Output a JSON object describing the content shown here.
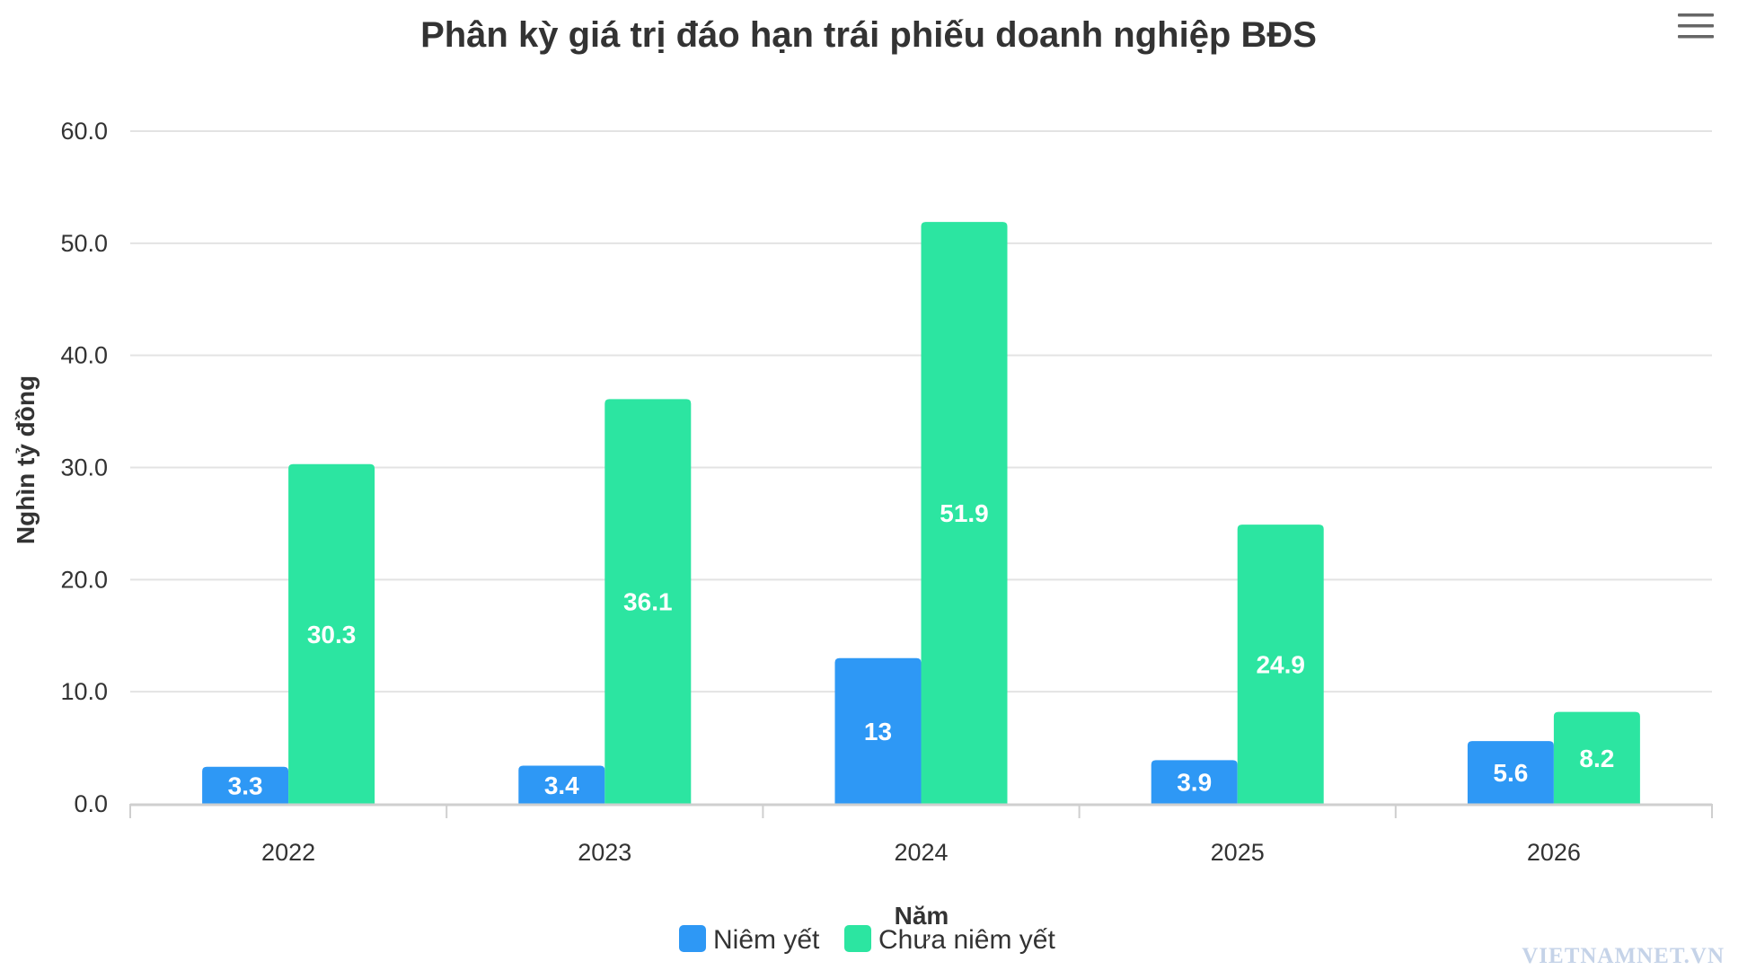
{
  "chart_data": {
    "type": "bar",
    "title": "Phân kỳ giá trị đáo hạn trái phiếu doanh nghiệp BĐS",
    "xlabel": "Năm",
    "ylabel": "Nghìn tỷ đồng",
    "categories": [
      "2022",
      "2023",
      "2024",
      "2025",
      "2026"
    ],
    "series": [
      {
        "name": "Niêm yết",
        "color": "#2e98f5",
        "values": [
          3.3,
          3.4,
          13,
          3.9,
          5.6
        ]
      },
      {
        "name": "Chưa niêm yết",
        "color": "#2ce5a1",
        "values": [
          30.3,
          36.1,
          51.9,
          24.9,
          8.2
        ]
      }
    ],
    "ylim": [
      0,
      60
    ],
    "yticks": [
      0,
      10,
      20,
      30,
      40,
      50,
      60
    ],
    "ytick_labels": [
      "0.0",
      "10.0",
      "20.0",
      "30.0",
      "40.0",
      "50.0",
      "60.0"
    ],
    "data_labels": [
      [
        "3.3",
        "3.4",
        "13",
        "3.9",
        "5.6"
      ],
      [
        "30.3",
        "36.1",
        "51.9",
        "24.9",
        "8.2"
      ]
    ],
    "grid": true,
    "legend_position": "bottom-center"
  },
  "menu": {
    "icon": "hamburger-menu-icon"
  },
  "watermark": {
    "text": "VIETNAMNET.VN"
  }
}
